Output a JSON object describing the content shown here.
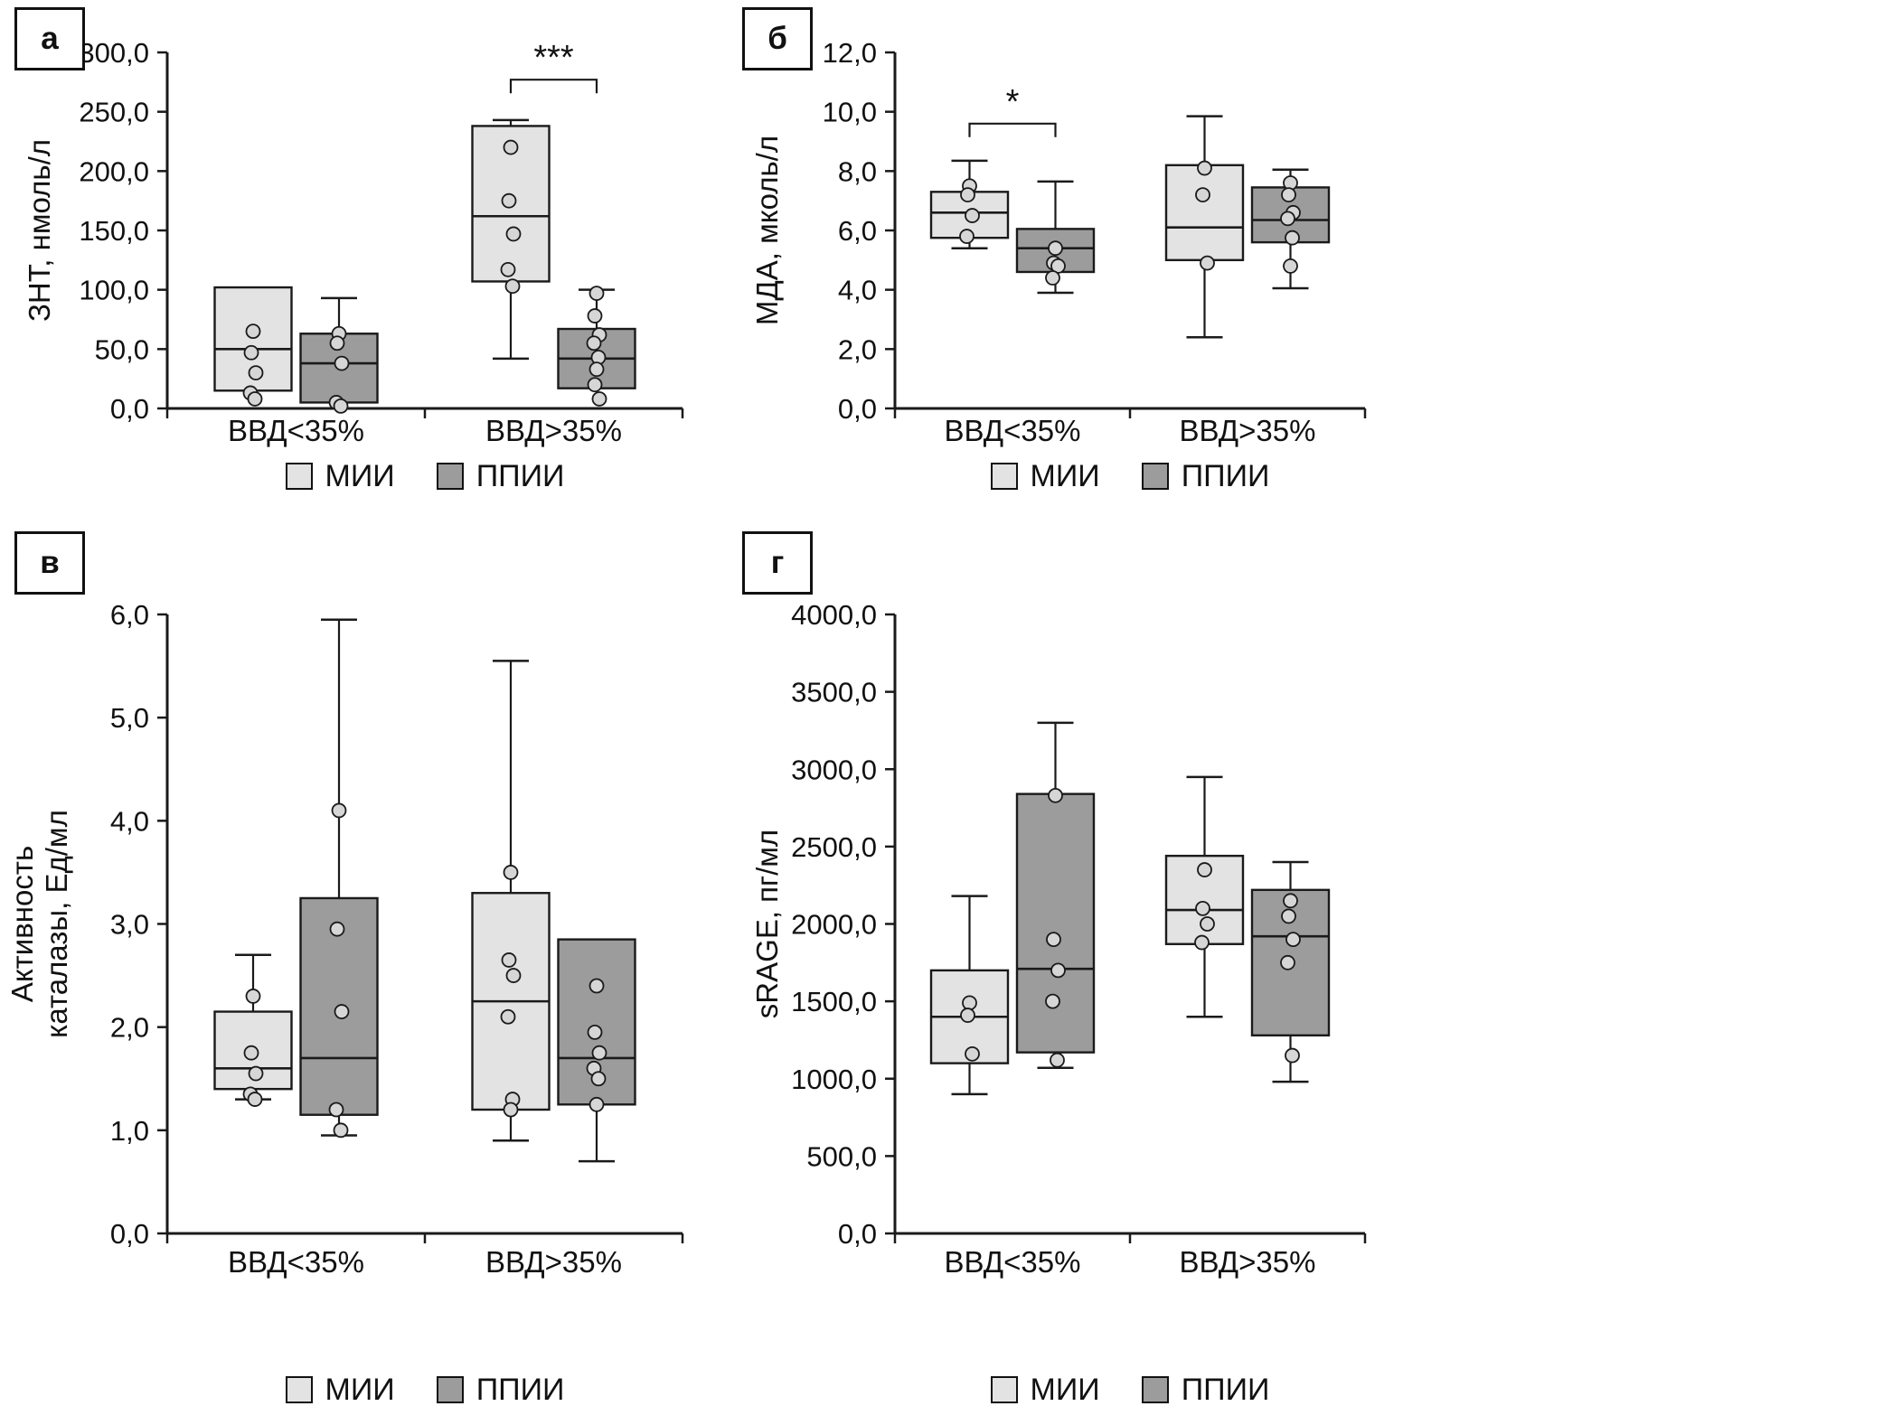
{
  "style": {
    "axis_color": "#1a1a1a",
    "point_fill": "#d6d6d6",
    "background": "#ffffff"
  },
  "legend": {
    "series": [
      {
        "label": "МИИ",
        "color": "#e3e3e3"
      },
      {
        "label": "ППИИ",
        "color": "#9c9c9c"
      }
    ]
  },
  "chart_data": [
    {
      "type": "boxplot",
      "panel_label": "а",
      "ylabel_lines": [
        "ЗНТ, нмоль/л"
      ],
      "ylim": [
        0,
        300
      ],
      "yticks": {
        "values": [
          0,
          50,
          100,
          150,
          200,
          250,
          300
        ],
        "labels": [
          "0,0",
          "50,0",
          "100,0",
          "150,0",
          "200,0",
          "250,0",
          "300,0"
        ]
      },
      "categories": [
        "ВВД<35%",
        "ВВД>35%"
      ],
      "series": [
        {
          "name": "МИИ",
          "boxes": [
            {
              "whisker_low": null,
              "q1": 15,
              "median": 50,
              "q3": 102,
              "whisker_high": null,
              "points": [
                65,
                47,
                30,
                13,
                8
              ]
            },
            {
              "whisker_low": 42,
              "q1": 107,
              "median": 162,
              "q3": 238,
              "whisker_high": 243,
              "points": [
                220,
                175,
                147,
                117,
                103
              ]
            }
          ]
        },
        {
          "name": "ППИИ",
          "boxes": [
            {
              "whisker_low": null,
              "q1": 5,
              "median": 38,
              "q3": 63,
              "whisker_high": 93,
              "points": [
                63,
                55,
                38,
                5,
                2
              ]
            },
            {
              "whisker_low": null,
              "q1": 17,
              "median": 42,
              "q3": 67,
              "whisker_high": 100,
              "points": [
                97,
                78,
                62,
                55,
                43,
                33,
                20,
                8
              ]
            }
          ]
        }
      ],
      "significance": [
        {
          "category": 1,
          "label": "***",
          "y": 277
        }
      ]
    },
    {
      "type": "boxplot",
      "panel_label": "б",
      "ylabel_lines": [
        "МДА, мколь/л"
      ],
      "ylim": [
        0,
        12
      ],
      "yticks": {
        "values": [
          0,
          2,
          4,
          6,
          8,
          10,
          12
        ],
        "labels": [
          "0,0",
          "2,0",
          "4,0",
          "6,0",
          "8,0",
          "10,0",
          "12,0"
        ]
      },
      "categories": [
        "ВВД<35%",
        "ВВД>35%"
      ],
      "series": [
        {
          "name": "МИИ",
          "boxes": [
            {
              "whisker_low": 5.4,
              "q1": 5.75,
              "median": 6.6,
              "q3": 7.3,
              "whisker_high": 8.35,
              "points": [
                7.5,
                7.2,
                6.5,
                5.8
              ]
            },
            {
              "whisker_low": 2.4,
              "q1": 5.0,
              "median": 6.1,
              "q3": 8.2,
              "whisker_high": 9.85,
              "points": [
                8.1,
                7.2,
                4.9
              ]
            }
          ]
        },
        {
          "name": "ППИИ",
          "boxes": [
            {
              "whisker_low": 3.9,
              "q1": 4.6,
              "median": 5.4,
              "q3": 6.05,
              "whisker_high": 7.65,
              "points": [
                5.4,
                4.9,
                4.8,
                4.4
              ]
            },
            {
              "whisker_low": 4.05,
              "q1": 5.6,
              "median": 6.35,
              "q3": 7.45,
              "whisker_high": 8.05,
              "points": [
                7.6,
                7.2,
                6.6,
                6.4,
                5.75,
                4.8
              ]
            }
          ]
        }
      ],
      "significance": [
        {
          "category": 0,
          "label": "*",
          "y": 9.6
        }
      ]
    },
    {
      "type": "boxplot",
      "panel_label": "в",
      "ylabel_lines": [
        "Активность",
        "каталазы, Ед/мл"
      ],
      "ylim": [
        0,
        6
      ],
      "yticks": {
        "values": [
          0,
          1,
          2,
          3,
          4,
          5,
          6
        ],
        "labels": [
          "0,0",
          "1,0",
          "2,0",
          "3,0",
          "4,0",
          "5,0",
          "6,0"
        ]
      },
      "categories": [
        "ВВД<35%",
        "ВВД>35%"
      ],
      "series": [
        {
          "name": "МИИ",
          "boxes": [
            {
              "whisker_low": 1.3,
              "q1": 1.4,
              "median": 1.6,
              "q3": 2.15,
              "whisker_high": 2.7,
              "points": [
                2.3,
                1.75,
                1.55,
                1.35,
                1.3
              ]
            },
            {
              "whisker_low": 0.9,
              "q1": 1.2,
              "median": 2.25,
              "q3": 3.3,
              "whisker_high": 5.55,
              "points": [
                3.5,
                2.65,
                2.5,
                2.1,
                1.3,
                1.2
              ]
            }
          ]
        },
        {
          "name": "ППИИ",
          "boxes": [
            {
              "whisker_low": 0.95,
              "q1": 1.15,
              "median": 1.7,
              "q3": 3.25,
              "whisker_high": 5.95,
              "points": [
                4.1,
                2.95,
                2.15,
                1.2,
                1.0
              ]
            },
            {
              "whisker_low": 0.7,
              "q1": 1.25,
              "median": 1.7,
              "q3": 2.85,
              "whisker_high": null,
              "points": [
                2.4,
                1.95,
                1.75,
                1.6,
                1.5,
                1.25
              ]
            }
          ]
        }
      ],
      "significance": []
    },
    {
      "type": "boxplot",
      "panel_label": "г",
      "ylabel_lines": [
        "sRAGE, пг/мл"
      ],
      "ylim": [
        0,
        4000
      ],
      "yticks": {
        "values": [
          0,
          500,
          1000,
          1500,
          2000,
          2500,
          3000,
          3500,
          4000
        ],
        "labels": [
          "0,0",
          "500,0",
          "1000,0",
          "1500,0",
          "2000,0",
          "2500,0",
          "3000,0",
          "3500,0",
          "4000,0"
        ]
      },
      "categories": [
        "ВВД<35%",
        "ВВД>35%"
      ],
      "series": [
        {
          "name": "МИИ",
          "boxes": [
            {
              "whisker_low": 900,
              "q1": 1100,
              "median": 1400,
              "q3": 1700,
              "whisker_high": 2180,
              "points": [
                1490,
                1410,
                1160
              ]
            },
            {
              "whisker_low": 1400,
              "q1": 1870,
              "median": 2090,
              "q3": 2440,
              "whisker_high": 2950,
              "points": [
                2350,
                2100,
                2000,
                1880
              ]
            }
          ]
        },
        {
          "name": "ППИИ",
          "boxes": [
            {
              "whisker_low": 1070,
              "q1": 1170,
              "median": 1710,
              "q3": 2840,
              "whisker_high": 3300,
              "points": [
                2830,
                1900,
                1700,
                1500,
                1120
              ]
            },
            {
              "whisker_low": 980,
              "q1": 1280,
              "median": 1920,
              "q3": 2220,
              "whisker_high": 2400,
              "points": [
                2150,
                2050,
                1900,
                1750,
                1150
              ]
            }
          ]
        }
      ],
      "significance": []
    }
  ]
}
